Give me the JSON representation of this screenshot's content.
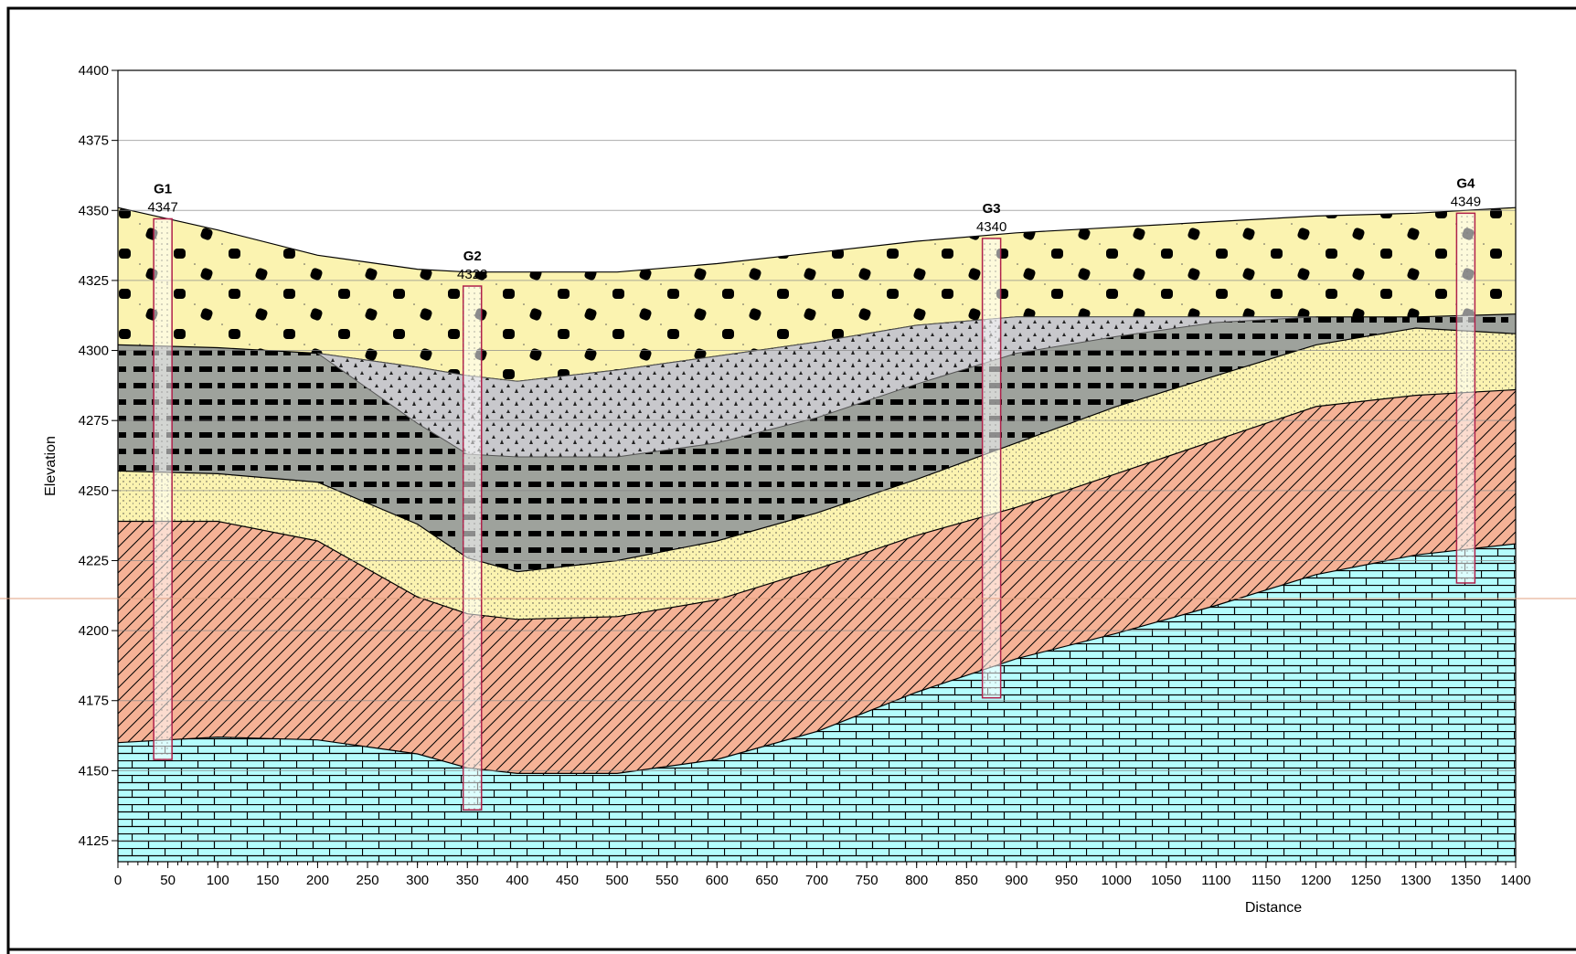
{
  "chart_data": {
    "type": "cross-section",
    "x_label": "Distance",
    "y_label": "Elevation",
    "xlim": [
      0,
      1400
    ],
    "ylim": [
      4117.5,
      4400
    ],
    "xticks": [
      0,
      50,
      100,
      150,
      200,
      250,
      300,
      350,
      400,
      450,
      500,
      550,
      600,
      650,
      700,
      750,
      800,
      850,
      900,
      950,
      1000,
      1050,
      1100,
      1150,
      1200,
      1250,
      1300,
      1350,
      1400
    ],
    "yticks": [
      4125,
      4150,
      4175,
      4200,
      4225,
      4250,
      4275,
      4300,
      4325,
      4350,
      4375,
      4400
    ],
    "grid": true,
    "x": [
      0,
      100,
      200,
      300,
      350,
      400,
      500,
      600,
      700,
      800,
      900,
      1000,
      1100,
      1200,
      1300,
      1400
    ],
    "layers": [
      {
        "color": "#fbf3b0",
        "top": [
          4351,
          4343,
          4334,
          4329,
          4328,
          4328,
          4328,
          4331,
          4335,
          4339,
          4342,
          4344,
          4346,
          4348,
          4349,
          4351
        ]
      },
      {
        "color": "#9ea29c",
        "top": [
          4302,
          4301,
          4299,
          4294,
          4291,
          4289,
          4293,
          4298,
          4303,
          4309,
          4312,
          4312,
          4312,
          4312,
          4312,
          4313
        ]
      },
      {
        "color": "#fbf3b0",
        "top": [
          4257,
          4256,
          4253,
          4238,
          4226,
          4221,
          4225,
          4232,
          4242,
          4254,
          4267,
          4280,
          4291,
          4302,
          4308,
          4306
        ]
      },
      {
        "color": "#f5b296",
        "top": [
          4239,
          4239,
          4232,
          4212,
          4206,
          4204,
          4205,
          4211,
          4222,
          4234,
          4244,
          4256,
          4268,
          4280,
          4284,
          4286
        ]
      },
      {
        "color": "#b4fcfc",
        "top": [
          4160,
          4162,
          4161,
          4156,
          4151,
          4149,
          4149,
          4154,
          4164,
          4178,
          4190,
          4199,
          4209,
          4220,
          4227,
          4231
        ]
      }
    ],
    "lens": {
      "color": "#c8c8cc",
      "x": [
        200,
        300,
        350,
        400,
        500,
        600,
        700,
        800,
        900,
        1000,
        1100,
        1200
      ],
      "top": [
        4299,
        4294,
        4291,
        4289,
        4293,
        4298,
        4303,
        4309,
        4312,
        4312,
        4312,
        4312
      ],
      "bottom": [
        4299,
        4274,
        4263,
        4262,
        4262,
        4267,
        4276,
        4288,
        4299,
        4305,
        4310,
        4312
      ]
    },
    "boreholes": [
      {
        "name": "G1",
        "x": 45,
        "top": 4347,
        "bottom": 4154
      },
      {
        "name": "G2",
        "x": 355,
        "top": 4323,
        "bottom": 4136
      },
      {
        "name": "G3",
        "x": 875,
        "top": 4340,
        "bottom": 4176
      },
      {
        "name": "G4",
        "x": 1350,
        "top": 4349,
        "bottom": 4217
      }
    ]
  }
}
